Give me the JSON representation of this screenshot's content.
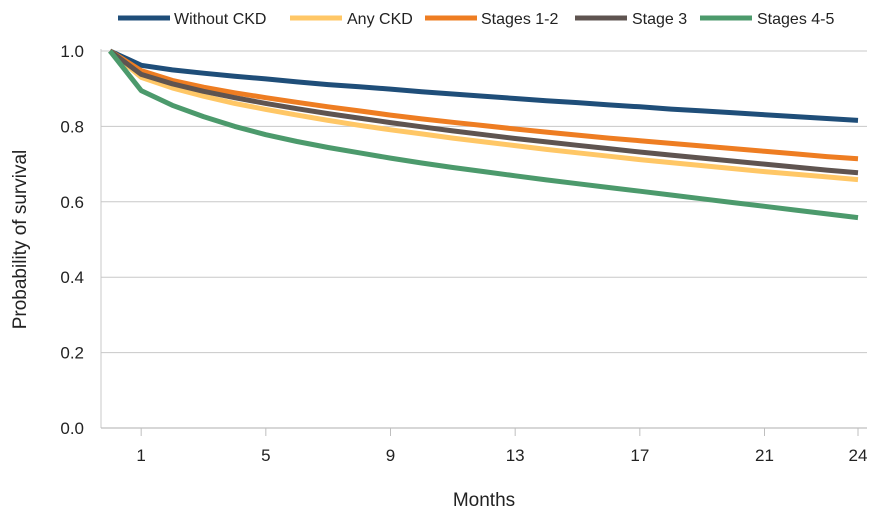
{
  "chart_data": {
    "type": "line",
    "xlabel": "Months",
    "ylabel": "Probability of survival",
    "xlim": [
      0,
      24
    ],
    "ylim": [
      0,
      1.0
    ],
    "x_ticks": [
      1,
      5,
      9,
      13,
      17,
      21,
      24
    ],
    "y_ticks": [
      0.0,
      0.2,
      0.4,
      0.6,
      0.8,
      1.0
    ],
    "y_tick_labels": [
      "0.0",
      "0.2",
      "0.4",
      "0.6",
      "0.8",
      "1.0"
    ],
    "grid": "horizontal",
    "legend_position": "top",
    "x": [
      0,
      1,
      2,
      3,
      4,
      5,
      6,
      7,
      8,
      9,
      10,
      11,
      12,
      13,
      14,
      15,
      16,
      17,
      18,
      19,
      20,
      21,
      22,
      23,
      24
    ],
    "series": [
      {
        "name": "Without CKD",
        "color": "#1f4e79",
        "values": [
          1.0,
          0.962,
          0.95,
          0.941,
          0.933,
          0.926,
          0.918,
          0.911,
          0.905,
          0.899,
          0.892,
          0.886,
          0.88,
          0.874,
          0.868,
          0.863,
          0.857,
          0.852,
          0.846,
          0.841,
          0.836,
          0.831,
          0.826,
          0.821,
          0.816
        ]
      },
      {
        "name": "Any CKD",
        "color": "#ffc766",
        "values": [
          1.0,
          0.93,
          0.902,
          0.88,
          0.861,
          0.845,
          0.83,
          0.816,
          0.803,
          0.791,
          0.78,
          0.769,
          0.759,
          0.749,
          0.739,
          0.73,
          0.721,
          0.712,
          0.704,
          0.696,
          0.688,
          0.68,
          0.673,
          0.666,
          0.659
        ]
      },
      {
        "name": "Stages 1-2",
        "color": "#ee7d22",
        "values": [
          1.0,
          0.948,
          0.922,
          0.904,
          0.889,
          0.876,
          0.864,
          0.852,
          0.841,
          0.83,
          0.82,
          0.811,
          0.802,
          0.793,
          0.785,
          0.777,
          0.769,
          0.762,
          0.755,
          0.748,
          0.741,
          0.734,
          0.727,
          0.72,
          0.714
        ]
      },
      {
        "name": "Stage 3",
        "color": "#5f5450",
        "values": [
          1.0,
          0.938,
          0.913,
          0.893,
          0.876,
          0.861,
          0.847,
          0.834,
          0.822,
          0.81,
          0.799,
          0.788,
          0.778,
          0.768,
          0.759,
          0.75,
          0.741,
          0.732,
          0.724,
          0.716,
          0.708,
          0.7,
          0.692,
          0.684,
          0.677
        ]
      },
      {
        "name": "Stages 4-5",
        "color": "#4c9a6c",
        "values": [
          1.0,
          0.895,
          0.856,
          0.826,
          0.8,
          0.778,
          0.76,
          0.744,
          0.73,
          0.716,
          0.703,
          0.691,
          0.68,
          0.669,
          0.658,
          0.648,
          0.638,
          0.628,
          0.618,
          0.608,
          0.598,
          0.588,
          0.578,
          0.568,
          0.558
        ]
      }
    ]
  }
}
